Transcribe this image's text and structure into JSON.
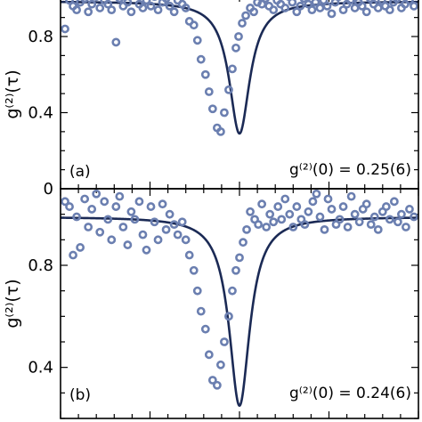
{
  "chart_data": [
    {
      "type": "scatter",
      "panel_label": "(a)",
      "annotation": "g⁽²⁾(0) = 0.25(6)",
      "ylabel": "g⁽²⁾(τ)",
      "xlabel": "",
      "ylim": [
        0,
        1.02
      ],
      "xlim": [
        -200,
        200
      ],
      "yticks": [
        0,
        0.4,
        0.8
      ],
      "ytick_labels": [
        "0",
        "0.4",
        "0.8"
      ],
      "grid": false,
      "legend": "none",
      "colors": {
        "points": "#6b7fb0",
        "fit": "#1b2a55"
      },
      "fit": {
        "baseline": 0.985,
        "minimum": 0.29,
        "width": 14
      },
      "points": {
        "x": [
          -195,
          -190,
          -186,
          -182,
          -178,
          -173,
          -169,
          -165,
          -160,
          -156,
          -151,
          -147,
          -143,
          -138,
          -134,
          -130,
          -125,
          -121,
          -117,
          -112,
          -108,
          -104,
          -99,
          -95,
          -91,
          -86,
          -82,
          -78,
          -73,
          -69,
          -64,
          -60,
          -56,
          -51,
          -47,
          -43,
          -38,
          -34,
          -30,
          -25,
          -21,
          -17,
          -12,
          -8,
          -4,
          -1,
          3,
          7,
          12,
          16,
          20,
          25,
          29,
          33,
          38,
          42,
          46,
          51,
          55,
          59,
          64,
          68,
          72,
          77,
          81,
          85,
          90,
          94,
          98,
          103,
          107,
          111,
          116,
          120,
          124,
          129,
          133,
          137,
          142,
          146,
          150,
          155,
          159,
          163,
          168,
          172,
          176,
          181,
          185,
          190,
          195
        ],
        "y": [
          0.84,
          0.99,
          0.96,
          0.94,
          0.98,
          1.0,
          0.93,
          0.97,
          1.01,
          0.95,
          0.99,
          0.97,
          0.94,
          0.77,
          1.0,
          0.96,
          0.98,
          0.93,
          1.02,
          0.97,
          0.95,
          0.99,
          0.96,
          1.01,
          0.94,
          0.98,
          1.0,
          0.96,
          0.93,
          0.99,
          0.97,
          0.95,
          0.88,
          0.86,
          0.78,
          0.68,
          0.6,
          0.51,
          0.42,
          0.32,
          0.3,
          0.4,
          0.52,
          0.63,
          0.74,
          0.8,
          0.87,
          0.91,
          0.95,
          0.93,
          0.98,
          0.97,
          1.0,
          0.96,
          0.94,
          0.99,
          0.97,
          0.95,
          1.01,
          0.98,
          0.93,
          0.96,
          1.0,
          0.97,
          0.94,
          0.98,
          0.95,
          0.99,
          0.96,
          0.92,
          0.98,
          1.01,
          0.94,
          0.97,
          0.99,
          0.95,
          0.98,
          0.96,
          0.93,
          1.0,
          0.97,
          0.95,
          0.99,
          0.96,
          0.94,
          0.98,
          1.0,
          0.95,
          0.97,
          0.99,
          0.96
        ]
      }
    },
    {
      "type": "scatter",
      "panel_label": "(b)",
      "annotation": "g⁽²⁾(0) = 0.24(6)",
      "ylabel": "g⁽²⁾(τ)",
      "xlabel": "",
      "ylim": [
        0.2,
        1.1
      ],
      "xlim": [
        -200,
        200
      ],
      "yticks": [
        0.4,
        0.8
      ],
      "ytick_labels": [
        "0.4",
        "0.8"
      ],
      "grid": false,
      "legend": "none",
      "colors": {
        "points": "#6b7fb0",
        "fit": "#1b2a55"
      },
      "fit": {
        "baseline": 0.99,
        "minimum": 0.25,
        "width": 14
      },
      "points": {
        "x": [
          -195,
          -190,
          -186,
          -182,
          -178,
          -173,
          -169,
          -165,
          -160,
          -156,
          -151,
          -147,
          -143,
          -138,
          -134,
          -130,
          -125,
          -121,
          -117,
          -112,
          -108,
          -104,
          -99,
          -95,
          -91,
          -86,
          -82,
          -78,
          -73,
          -69,
          -64,
          -60,
          -56,
          -51,
          -47,
          -43,
          -38,
          -34,
          -30,
          -25,
          -21,
          -17,
          -12,
          -8,
          -4,
          0,
          4,
          8,
          12,
          17,
          21,
          25,
          30,
          34,
          38,
          43,
          47,
          51,
          56,
          60,
          64,
          69,
          73,
          77,
          82,
          86,
          90,
          95,
          99,
          103,
          108,
          112,
          116,
          121,
          125,
          129,
          134,
          138,
          142,
          147,
          151,
          155,
          160,
          164,
          168,
          173,
          177,
          181,
          186,
          190,
          195
        ],
        "y": [
          1.05,
          1.03,
          0.84,
          0.99,
          0.87,
          1.06,
          0.95,
          1.02,
          1.08,
          0.93,
          1.05,
          0.98,
          0.9,
          1.03,
          1.07,
          0.95,
          0.88,
          1.01,
          0.98,
          1.05,
          0.92,
          0.86,
          1.03,
          0.97,
          0.9,
          1.04,
          0.94,
          1.0,
          0.96,
          0.92,
          0.97,
          0.9,
          0.84,
          0.78,
          0.7,
          0.62,
          0.55,
          0.45,
          0.35,
          0.33,
          0.41,
          0.5,
          0.6,
          0.7,
          0.78,
          0.83,
          0.89,
          0.94,
          1.01,
          0.98,
          0.96,
          1.04,
          0.95,
          1.0,
          0.97,
          1.03,
          0.98,
          1.06,
          1.0,
          0.95,
          1.03,
          0.98,
          0.96,
          1.01,
          1.05,
          1.08,
          0.99,
          0.94,
          1.06,
          1.02,
          0.96,
          0.98,
          1.03,
          0.95,
          1.07,
          1.0,
          0.97,
          1.02,
          1.04,
          0.96,
          0.99,
          0.94,
          1.01,
          1.03,
          0.98,
          1.05,
          0.97,
          1.0,
          0.95,
          1.02,
          0.99
        ]
      }
    }
  ]
}
